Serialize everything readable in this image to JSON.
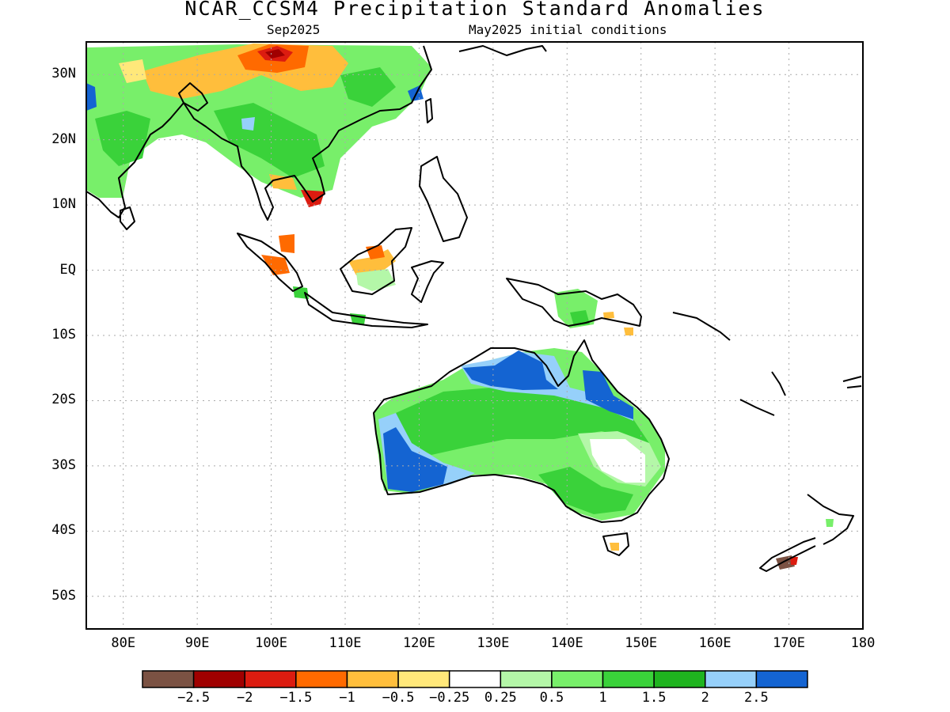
{
  "title": "NCAR_CCSM4 Precipitation Standard Anomalies",
  "subtitle_left": "Sep2025",
  "subtitle_right": "May2025 initial conditions",
  "map": {
    "lon_range": [
      75,
      180
    ],
    "lat_range": [
      -55,
      35
    ],
    "lat_labels": [
      {
        "lat": 30,
        "text": "30N"
      },
      {
        "lat": 20,
        "text": "20N"
      },
      {
        "lat": 10,
        "text": "10N"
      },
      {
        "lat": 0,
        "text": "EQ"
      },
      {
        "lat": -10,
        "text": "10S"
      },
      {
        "lat": -20,
        "text": "20S"
      },
      {
        "lat": -30,
        "text": "30S"
      },
      {
        "lat": -40,
        "text": "40S"
      },
      {
        "lat": -50,
        "text": "50S"
      }
    ],
    "lon_labels": [
      {
        "lon": 80,
        "text": "80E"
      },
      {
        "lon": 90,
        "text": "90E"
      },
      {
        "lon": 100,
        "text": "100E"
      },
      {
        "lon": 110,
        "text": "110E"
      },
      {
        "lon": 120,
        "text": "120E"
      },
      {
        "lon": 130,
        "text": "130E"
      },
      {
        "lon": 140,
        "text": "140E"
      },
      {
        "lon": 150,
        "text": "150E"
      },
      {
        "lon": 160,
        "text": "160E"
      },
      {
        "lon": 170,
        "text": "170E"
      },
      {
        "lon": 180,
        "text": "180"
      }
    ]
  },
  "colorbar": {
    "colors": [
      "#7b5243",
      "#a00000",
      "#dc1c10",
      "#ff6a00",
      "#ffbe3c",
      "#ffe87a",
      "#ffffff",
      "#b4f7a8",
      "#78ef6a",
      "#3ad23a",
      "#1fb41f",
      "#96d0fa",
      "#1464d2"
    ],
    "labels": [
      "−2.5",
      "−2",
      "−1.5",
      "−1",
      "−0.5",
      "−0.25",
      "0.25",
      "0.5",
      "1",
      "1.5",
      "2",
      "2.5"
    ]
  }
}
